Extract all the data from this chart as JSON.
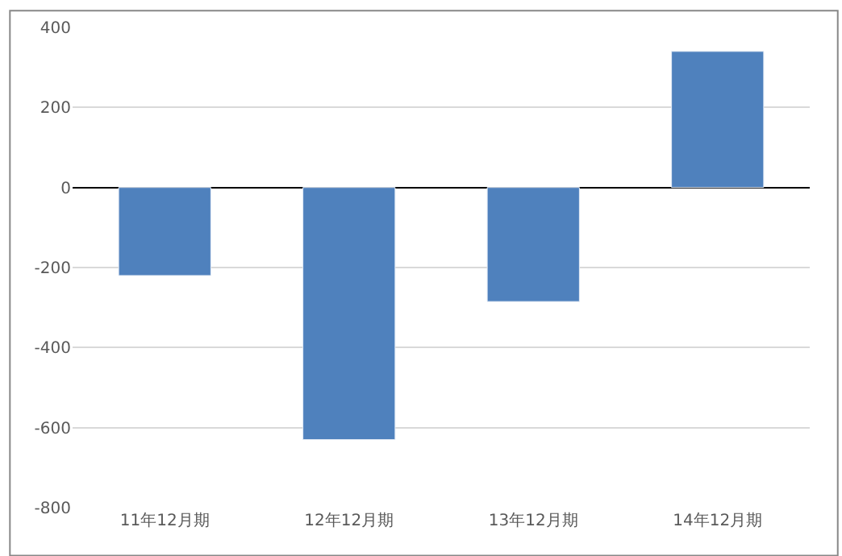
{
  "chart_data": {
    "type": "bar",
    "categories": [
      "11年12月期",
      "12年12月期",
      "13年12月期",
      "14年12月期"
    ],
    "values": [
      -220,
      -630,
      -285,
      340
    ],
    "color": "#4f81bd",
    "ylim": [
      -800,
      400
    ],
    "yticks": [
      -800,
      -600,
      -400,
      -200,
      0,
      200,
      400
    ],
    "grid": "y",
    "legend": false
  }
}
